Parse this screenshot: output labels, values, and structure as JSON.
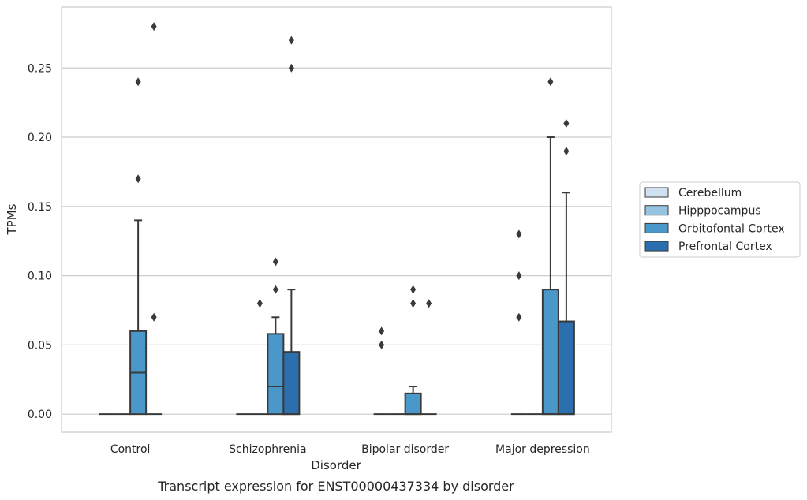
{
  "chart_data": {
    "type": "box",
    "title": "",
    "caption": "Transcript expression for ENST00000437334 by disorder",
    "xlabel": "Disorder",
    "ylabel": "TPMs",
    "ylim": [
      -0.013,
      0.294
    ],
    "yticks": [
      "0.00",
      "0.05",
      "0.10",
      "0.15",
      "0.20",
      "0.25"
    ],
    "ytick_values": [
      0.0,
      0.05,
      0.1,
      0.15,
      0.2,
      0.25
    ],
    "grid": "horizontal",
    "legend_position": "right",
    "categories": [
      "Control",
      "Schizophrenia",
      "Bipolar disorder",
      "Major depression"
    ],
    "series": [
      {
        "name": "Cerebellum",
        "color": "#d0e1f2",
        "boxes": [
          {
            "q1": 0,
            "median": 0,
            "q3": 0,
            "whisker_low": 0,
            "whisker_high": 0,
            "outliers": []
          },
          {
            "q1": 0,
            "median": 0,
            "q3": 0,
            "whisker_low": 0,
            "whisker_high": 0,
            "outliers": []
          },
          {
            "q1": 0,
            "median": 0,
            "q3": 0,
            "whisker_low": 0,
            "whisker_high": 0,
            "outliers": [
              0.05,
              0.06
            ]
          },
          {
            "q1": 0,
            "median": 0,
            "q3": 0,
            "whisker_low": 0,
            "whisker_high": 0,
            "outliers": [
              0.07,
              0.1,
              0.13
            ]
          }
        ]
      },
      {
        "name": "Hipppocampus",
        "color": "#94c4df",
        "boxes": [
          {
            "q1": 0,
            "median": 0,
            "q3": 0,
            "whisker_low": 0,
            "whisker_high": 0,
            "outliers": []
          },
          {
            "q1": 0,
            "median": 0,
            "q3": 0,
            "whisker_low": 0,
            "whisker_high": 0,
            "outliers": [
              0.08
            ]
          },
          {
            "q1": 0,
            "median": 0,
            "q3": 0,
            "whisker_low": 0,
            "whisker_high": 0,
            "outliers": []
          },
          {
            "q1": 0,
            "median": 0,
            "q3": 0,
            "whisker_low": 0,
            "whisker_high": 0,
            "outliers": []
          }
        ]
      },
      {
        "name": "Orbitofontal Cortex",
        "color": "#4a98c9",
        "boxes": [
          {
            "q1": 0,
            "median": 0.03,
            "q3": 0.06,
            "whisker_low": 0,
            "whisker_high": 0.14,
            "outliers": [
              0.17,
              0.24
            ]
          },
          {
            "q1": 0,
            "median": 0.02,
            "q3": 0.058,
            "whisker_low": 0,
            "whisker_high": 0.07,
            "outliers": [
              0.09,
              0.11
            ]
          },
          {
            "q1": 0,
            "median": 0,
            "q3": 0.015,
            "whisker_low": 0,
            "whisker_high": 0.02,
            "outliers": [
              0.08,
              0.09
            ]
          },
          {
            "q1": 0,
            "median": 0,
            "q3": 0.09,
            "whisker_low": 0,
            "whisker_high": 0.2,
            "outliers": [
              0.24
            ]
          }
        ]
      },
      {
        "name": "Prefrontal Cortex",
        "color": "#2b6faf",
        "boxes": [
          {
            "q1": 0,
            "median": 0,
            "q3": 0,
            "whisker_low": 0,
            "whisker_high": 0,
            "outliers": [
              0.07,
              0.28
            ]
          },
          {
            "q1": 0,
            "median": 0,
            "q3": 0.045,
            "whisker_low": 0,
            "whisker_high": 0.09,
            "outliers": [
              0.25,
              0.27
            ]
          },
          {
            "q1": 0,
            "median": 0,
            "q3": 0,
            "whisker_low": 0,
            "whisker_high": 0,
            "outliers": [
              0.08
            ]
          },
          {
            "q1": 0,
            "median": 0,
            "q3": 0.067,
            "whisker_low": 0,
            "whisker_high": 0.16,
            "outliers": [
              0.19,
              0.21
            ]
          }
        ]
      }
    ]
  }
}
